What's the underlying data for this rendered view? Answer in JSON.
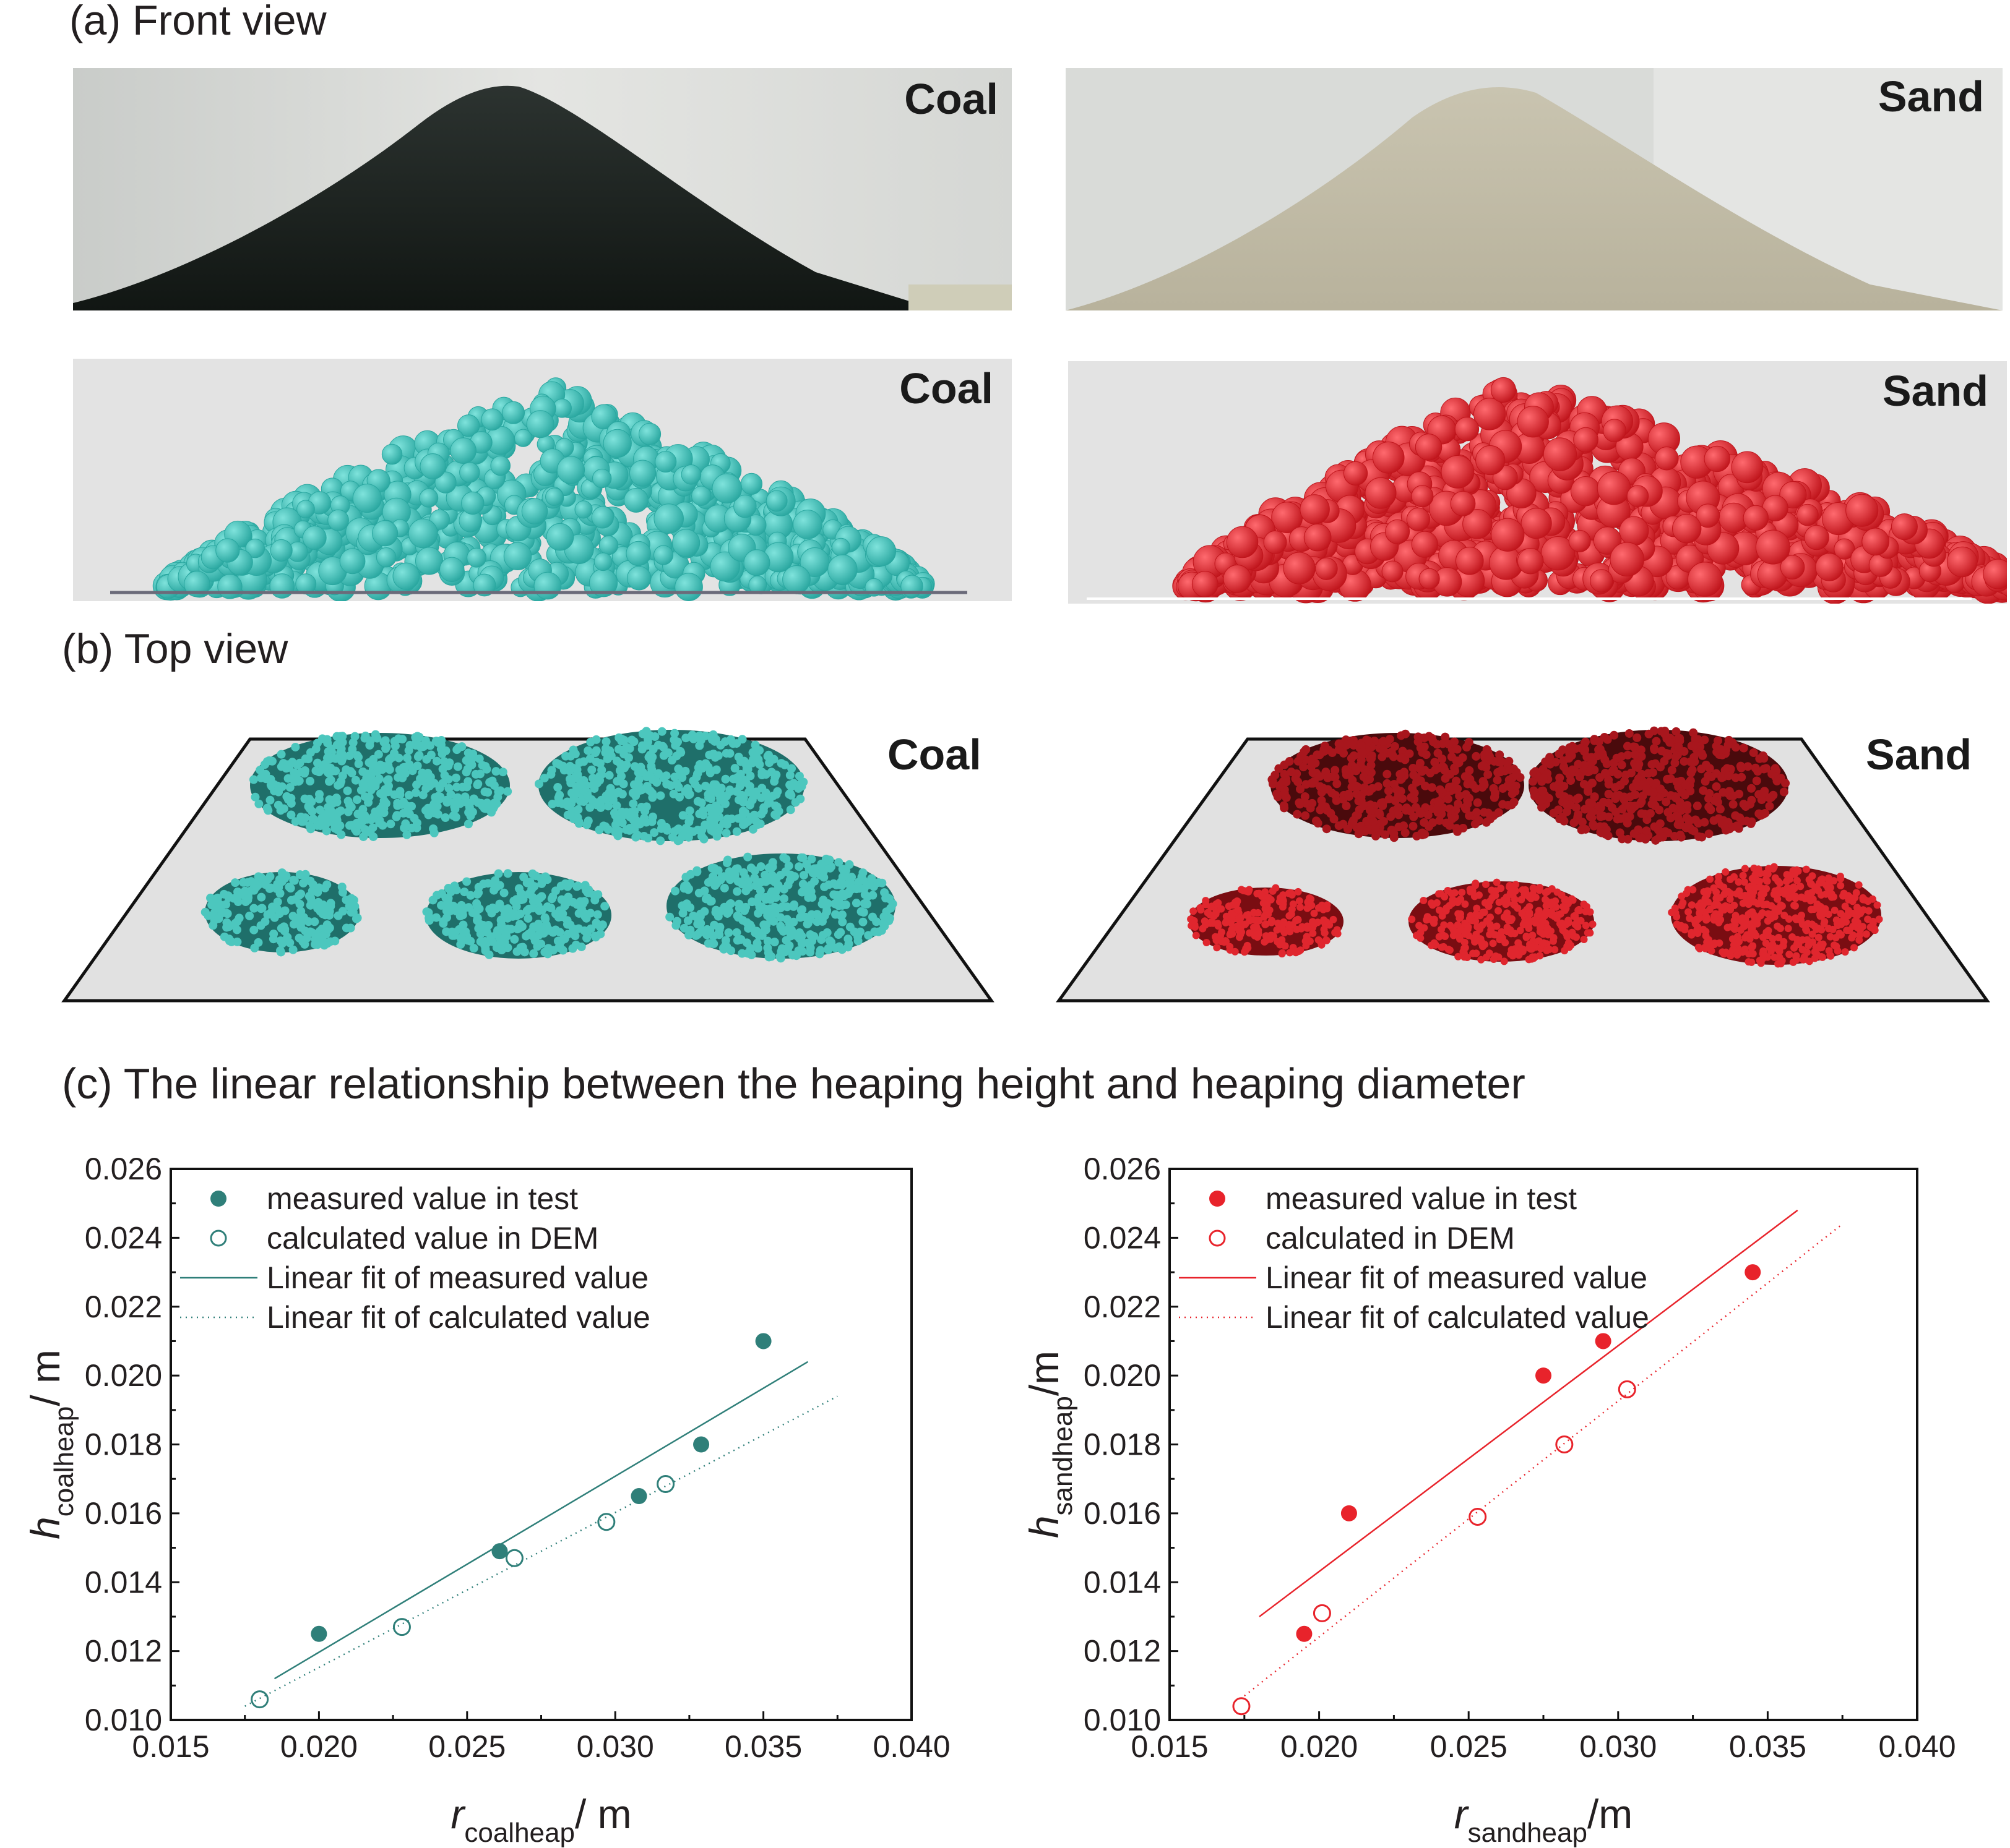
{
  "section_a": {
    "title": "(a) Front view",
    "photo_coal_label": "Coal",
    "photo_sand_label": "Sand",
    "dem_coal_label": "Coal",
    "dem_sand_label": "Sand"
  },
  "section_b": {
    "title": "(b) Top view",
    "coal_label": "Coal",
    "sand_label": "Sand"
  },
  "section_c": {
    "title": "(c) The linear relationship between the heaping height and heaping diameter"
  },
  "colors": {
    "coal": "#2f7f79",
    "sand": "#e8232b"
  },
  "chart_data": [
    {
      "type": "scatter",
      "x_ticks": [
        "0.015",
        "0.020",
        "0.025",
        "0.030",
        "0.035",
        "0.040"
      ],
      "y_ticks": [
        "0.010",
        "0.012",
        "0.014",
        "0.016",
        "0.018",
        "0.020",
        "0.022",
        "0.024",
        "0.026"
      ],
      "xlim": [
        0.015,
        0.04
      ],
      "ylim": [
        0.01,
        0.026
      ],
      "xlabel": {
        "symbol": "r",
        "sub": "coalheap",
        "unit": "/ m"
      },
      "ylabel": {
        "symbol": "h",
        "sub": "coalheap",
        "unit": "/ m"
      },
      "legend": [
        "measured value in test",
        "calculated value in DEM",
        "Linear fit of measured value",
        "Linear fit of calculated value"
      ],
      "legend_position": "top-left",
      "color": "#2f7f79",
      "series": [
        {
          "name": "measured value in test",
          "style": "filled",
          "x": [
            0.02,
            0.0261,
            0.0308,
            0.0329,
            0.035
          ],
          "y": [
            0.0125,
            0.0149,
            0.0165,
            0.018,
            0.021
          ]
        },
        {
          "name": "calculated value in DEM",
          "style": "open",
          "x": [
            0.018,
            0.0228,
            0.0266,
            0.0297,
            0.0317
          ],
          "y": [
            0.0106,
            0.0127,
            0.0147,
            0.01575,
            0.01685
          ]
        },
        {
          "name": "Linear fit of measured value",
          "style": "solid-line",
          "x": [
            0.0185,
            0.0365
          ],
          "y": [
            0.0112,
            0.0204
          ]
        },
        {
          "name": "Linear fit of calculated value",
          "style": "dotted-line",
          "x": [
            0.0175,
            0.0375
          ],
          "y": [
            0.0104,
            0.0194
          ]
        }
      ]
    },
    {
      "type": "scatter",
      "x_ticks": [
        "0.015",
        "0.020",
        "0.025",
        "0.030",
        "0.035",
        "0.040"
      ],
      "y_ticks": [
        "0.010",
        "0.012",
        "0.014",
        "0.016",
        "0.018",
        "0.020",
        "0.022",
        "0.024",
        "0.026"
      ],
      "xlim": [
        0.015,
        0.04
      ],
      "ylim": [
        0.01,
        0.026
      ],
      "xlabel": {
        "symbol": "r",
        "sub": "sandheap",
        "unit": "/m"
      },
      "ylabel": {
        "symbol": "h",
        "sub": "sandheap",
        "unit": "/m"
      },
      "legend": [
        "measured value in test",
        "calculated in DEM",
        "Linear fit of measured value",
        "Linear fit of calculated value"
      ],
      "legend_position": "top-left",
      "color": "#e8232b",
      "series": [
        {
          "name": "measured value in test",
          "style": "filled",
          "x": [
            0.0195,
            0.021,
            0.0275,
            0.0295,
            0.0345
          ],
          "y": [
            0.0125,
            0.016,
            0.02,
            0.021,
            0.023
          ]
        },
        {
          "name": "calculated in DEM",
          "style": "open",
          "x": [
            0.0174,
            0.0201,
            0.0253,
            0.0282,
            0.0303
          ],
          "y": [
            0.0104,
            0.0131,
            0.0159,
            0.018,
            0.0196
          ]
        },
        {
          "name": "Linear fit of measured value",
          "style": "solid-line",
          "x": [
            0.018,
            0.036
          ],
          "y": [
            0.013,
            0.0248
          ]
        },
        {
          "name": "Linear fit of calculated value",
          "style": "dotted-line",
          "x": [
            0.0175,
            0.0375
          ],
          "y": [
            0.0107,
            0.0244
          ]
        }
      ]
    }
  ]
}
